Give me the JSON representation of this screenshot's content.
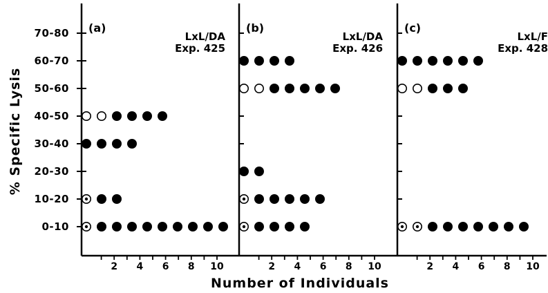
{
  "chart_data": {
    "type": "scatter",
    "ylabel": "% Specific Lysis",
    "xlabel": "Number of Individuals",
    "y_categories": [
      "0-10",
      "10-20",
      "20-30",
      "30-40",
      "40-50",
      "50-60",
      "60-70",
      "70-80"
    ],
    "x_ticks": [
      2,
      4,
      6,
      8,
      10
    ],
    "xlim": [
      0,
      10
    ],
    "legend": {
      "filled_circle": "filled marker",
      "open_circle": "open marker",
      "open_circle_with_dot": "dotted open marker"
    },
    "panels": [
      {
        "label": "(a)",
        "annotation": [
          "LxL/DA",
          "Exp. 425"
        ],
        "rows": [
          {
            "category": "0-10",
            "open": 0,
            "dotted": 1,
            "filled": 9
          },
          {
            "category": "10-20",
            "open": 0,
            "dotted": 1,
            "filled": 2
          },
          {
            "category": "30-40",
            "open": 0,
            "dotted": 0,
            "filled": 4
          },
          {
            "category": "40-50",
            "open": 2,
            "dotted": 0,
            "filled": 4
          }
        ]
      },
      {
        "label": "(b)",
        "annotation": [
          "LxL/DA",
          "Exp. 426"
        ],
        "rows": [
          {
            "category": "0-10",
            "open": 0,
            "dotted": 1,
            "filled": 4
          },
          {
            "category": "10-20",
            "open": 0,
            "dotted": 1,
            "filled": 5
          },
          {
            "category": "20-30",
            "open": 0,
            "dotted": 0,
            "filled": 2
          },
          {
            "category": "50-60",
            "open": 2,
            "dotted": 0,
            "filled": 5
          },
          {
            "category": "60-70",
            "open": 0,
            "dotted": 0,
            "filled": 4
          }
        ]
      },
      {
        "label": "(c)",
        "annotation": [
          "LxL/F",
          "Exp. 428"
        ],
        "rows": [
          {
            "category": "0-10",
            "open": 0,
            "dotted": 2,
            "filled": 7
          },
          {
            "category": "50-60",
            "open": 2,
            "dotted": 0,
            "filled": 3
          },
          {
            "category": "60-70",
            "open": 0,
            "dotted": 0,
            "filled": 6
          }
        ]
      }
    ]
  }
}
